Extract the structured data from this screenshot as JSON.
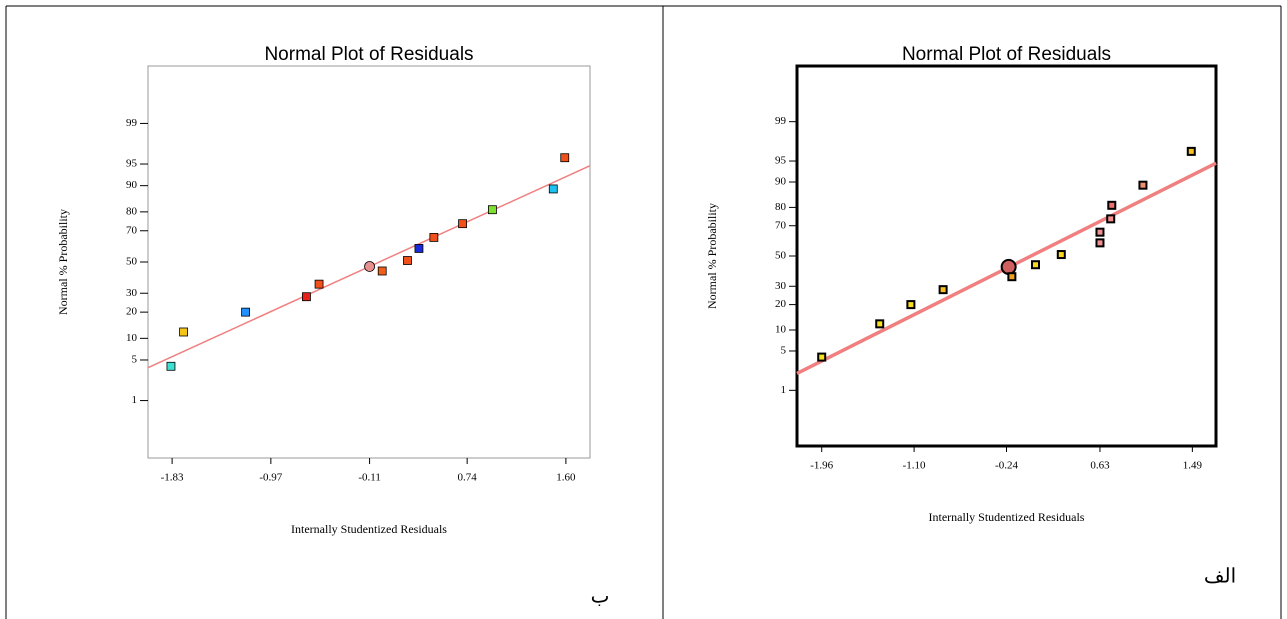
{
  "chart_data": [
    {
      "type": "scatter",
      "title": "Normal Plot of Residuals",
      "xlabel": "Internally Studentized Residuals",
      "ylabel": "Normal % Probability",
      "panel_label": "ب",
      "yscale": "probit",
      "xlim": [
        -2.04,
        1.81
      ],
      "ylim": [
        0.05,
        99.95
      ],
      "xticks": [
        -1.83,
        -0.97,
        -0.11,
        0.74,
        {
          "value": 1.6,
          "label": "1.60"
        }
      ],
      "yticks": [
        1,
        5,
        10,
        20,
        30,
        50,
        70,
        80,
        90,
        95,
        99
      ],
      "x": [
        -1.84,
        -1.73,
        -1.19,
        -0.66,
        -0.55,
        -0.11,
        0.0,
        0.22,
        0.32,
        0.45,
        0.7,
        0.96,
        1.49,
        1.59
      ],
      "values": [
        4,
        12,
        20,
        28,
        35.5,
        47,
        44,
        51,
        59,
        66,
        74,
        81,
        89,
        96
      ],
      "colors": [
        "#40e0d0",
        "#f5c518",
        "#1e90ff",
        "#e8201a",
        "#f0501a",
        "#e89090",
        "#f0601a",
        "#f0501a",
        "#1a2ad8",
        "#f0501a",
        "#f0501a",
        "#80e030",
        "#20c0f0",
        "#f0501a"
      ],
      "markers": [
        "square",
        "square",
        "square",
        "square",
        "square",
        "circle",
        "square",
        "square",
        "square",
        "square",
        "square",
        "square",
        "square",
        "square"
      ],
      "fit_line": {
        "x": [
          -2.04,
          1.81
        ],
        "y": [
          3.8,
          94.7
        ],
        "color": "#f08080"
      }
    },
    {
      "type": "scatter",
      "title": "Normal Plot of Residuals",
      "xlabel": "Internally Studentized Residuals",
      "ylabel": "Normal % Probability",
      "panel_label": "الف",
      "yscale": "probit",
      "xlim": [
        -2.19,
        1.71
      ],
      "ylim": [
        0.05,
        99.95
      ],
      "xticks": [
        -1.96,
        {
          "value": -1.1,
          "label": "-1.10"
        },
        -0.24,
        0.63,
        1.49
      ],
      "yticks": [
        1,
        5,
        10,
        20,
        30,
        50,
        70,
        80,
        90,
        95,
        99
      ],
      "x": [
        -1.96,
        -1.42,
        -1.13,
        -0.83,
        -0.22,
        -0.19,
        0.03,
        0.27,
        0.63,
        0.63,
        0.73,
        0.74,
        1.03,
        1.48
      ],
      "values": [
        4,
        12,
        20,
        28,
        42.5,
        36,
        44,
        51,
        59,
        66,
        74,
        81,
        89,
        96.5
      ],
      "colors": [
        "#f8e020",
        "#f8e020",
        "#f8e020",
        "#f8c020",
        "#d06060",
        "#f0a020",
        "#f8d820",
        "#f8d820",
        "#f09090",
        "#f09090",
        "#f09090",
        "#f07070",
        "#f09070",
        "#f8c020"
      ],
      "markers": [
        "square",
        "square",
        "square",
        "square",
        "circle",
        "square",
        "square",
        "square",
        "square",
        "square",
        "square",
        "square",
        "square",
        "square"
      ],
      "fit_line": {
        "x": [
          -2.19,
          1.71
        ],
        "y": [
          2.1,
          94.6
        ],
        "color": "#f08080"
      }
    }
  ]
}
